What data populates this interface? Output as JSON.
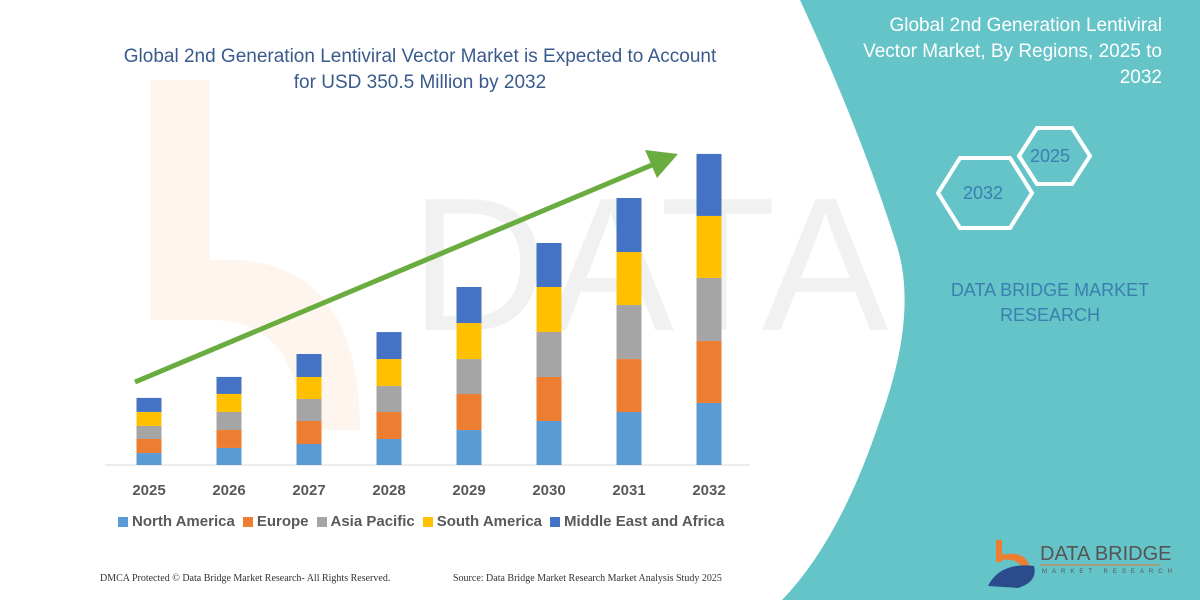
{
  "header": {
    "title": "Global 2nd Generation Lentiviral Vector Market is Expected to Account for USD 350.5 Million by 2032"
  },
  "side_panel": {
    "title": "Global 2nd Generation Lentiviral Vector Market, By Regions, 2025 to 2032",
    "hex_start": "2025",
    "hex_end": "2032",
    "brand": "DATA BRIDGE MARKET RESEARCH",
    "logo_text": "DATA BRIDGE",
    "logo_sub": "MARKET RESEARCH",
    "panel_color": "#64c4c8"
  },
  "footer": {
    "copyright": "DMCA Protected © Data Bridge Market Research-  All Rights Reserved.",
    "source": "Source: Data Bridge Market Research  Market Analysis Study 2025"
  },
  "chart_data": {
    "type": "bar",
    "stacked": true,
    "categories": [
      "2025",
      "2026",
      "2027",
      "2028",
      "2029",
      "2030",
      "2031",
      "2032"
    ],
    "series": [
      {
        "name": "North America",
        "color": "#5b9bd5",
        "values": [
          13.5,
          19.2,
          23.7,
          29.3,
          39.4,
          49.6,
          59.7,
          69.9
        ]
      },
      {
        "name": "Europe",
        "color": "#ed7d31",
        "values": [
          15.8,
          20.3,
          25.9,
          30.4,
          40.6,
          49.6,
          59.7,
          69.9
        ]
      },
      {
        "name": "Asia Pacific",
        "color": "#a5a5a5",
        "values": [
          14.7,
          20.3,
          24.8,
          29.3,
          39.4,
          50.7,
          60.9,
          71.0
        ]
      },
      {
        "name": "South America",
        "color": "#ffc000",
        "values": [
          15.8,
          20.3,
          24.8,
          30.4,
          40.6,
          50.7,
          59.7,
          69.9
        ]
      },
      {
        "name": "Middle East and Africa",
        "color": "#4472c4",
        "values": [
          15.8,
          19.2,
          25.9,
          30.4,
          40.6,
          49.6,
          60.9,
          69.9
        ]
      }
    ],
    "trend_arrow_color": "#6aac3f",
    "grid": false,
    "legend_position": "bottom"
  }
}
